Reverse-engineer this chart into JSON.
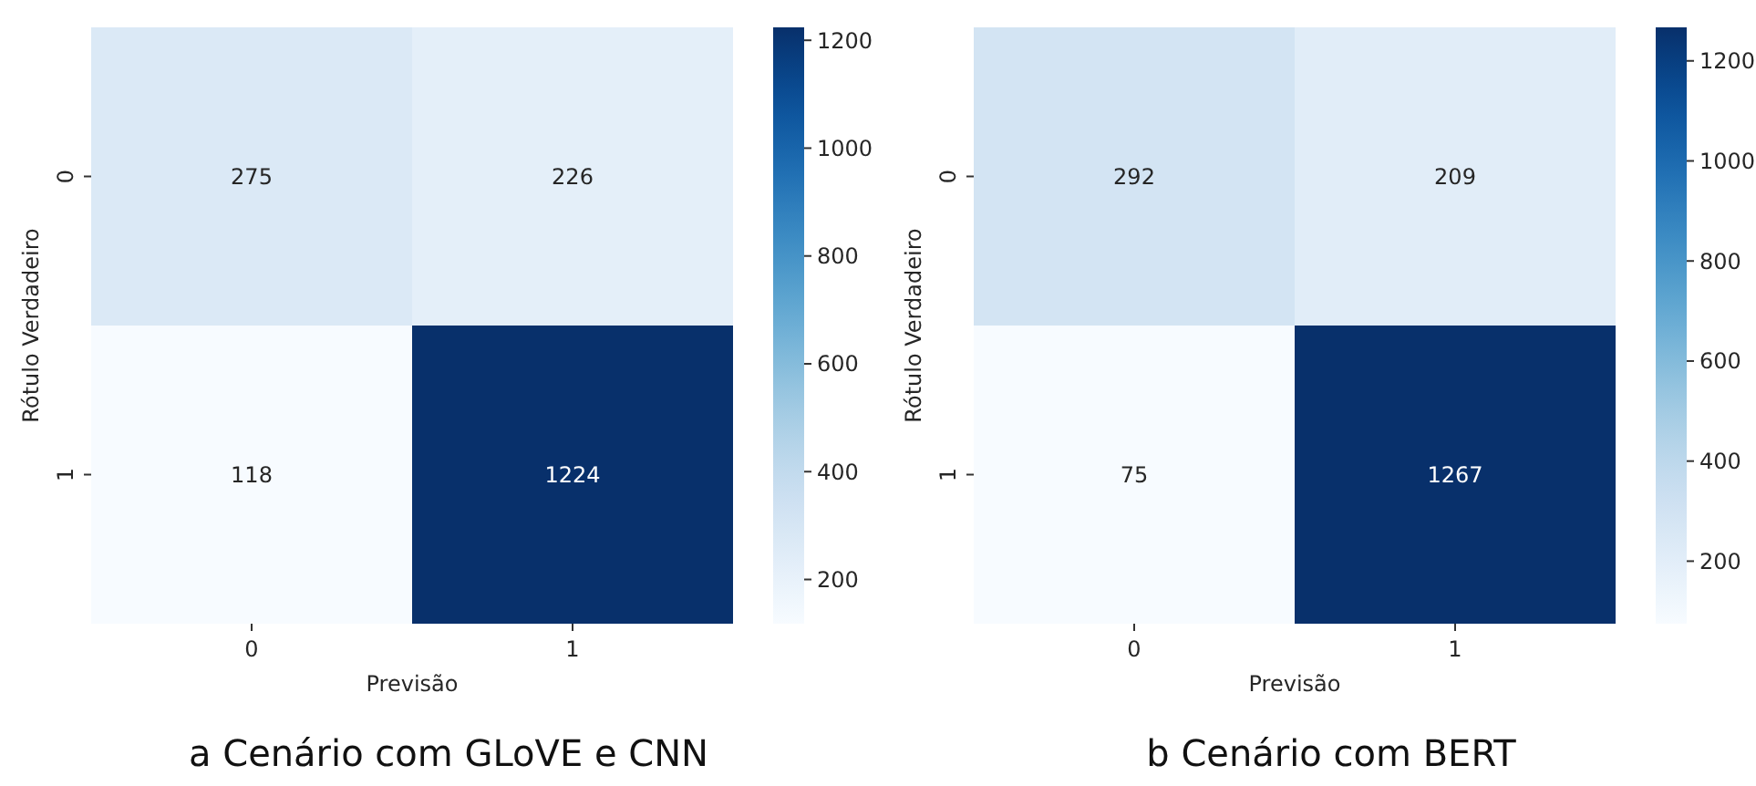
{
  "chart_data": [
    {
      "type": "heatmap",
      "categories": [
        "0",
        "1"
      ],
      "y_categories": [
        "0",
        "1"
      ],
      "xlabel": "Previsão",
      "ylabel": "Rótulo Verdadeiro",
      "cells": [
        [
          275,
          226
        ],
        [
          118,
          1224
        ]
      ],
      "clim": [
        118,
        1224
      ],
      "cticks": [
        200,
        400,
        600,
        800,
        1000,
        1200
      ],
      "data_labels": true,
      "annotations": [
        "a  Cenário com GLoVE e CNN"
      ]
    },
    {
      "type": "heatmap",
      "categories": [
        "0",
        "1"
      ],
      "y_categories": [
        "0",
        "1"
      ],
      "xlabel": "Previsão",
      "ylabel": "Rótulo Verdadeiro",
      "cells": [
        [
          292,
          209
        ],
        [
          75,
          1267
        ]
      ],
      "clim": [
        75,
        1267
      ],
      "cticks": [
        200,
        400,
        600,
        800,
        1000,
        1200
      ],
      "data_labels": true,
      "annotations": [
        "b  Cenário com BERT"
      ]
    }
  ]
}
